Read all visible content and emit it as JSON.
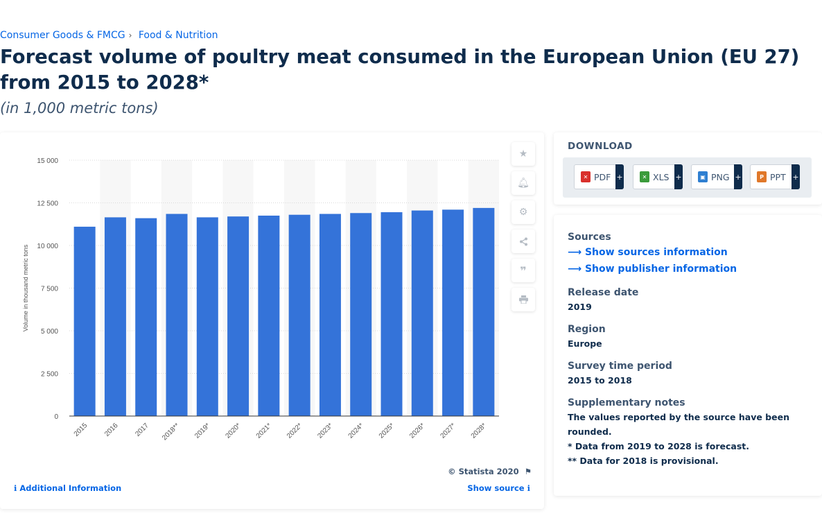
{
  "breadcrumb": {
    "item1": "Consumer Goods & FMCG",
    "sep": "›",
    "item2": "Food & Nutrition"
  },
  "title": "Forecast volume of poultry meat consumed in the European Union (EU 27) from 2015 to 2028*",
  "subtitle": "(in 1,000 metric tons)",
  "chart_data": {
    "type": "bar",
    "categories": [
      "2015",
      "2016",
      "2017",
      "2018**",
      "2019*",
      "2020*",
      "2021*",
      "2022*",
      "2023*",
      "2024*",
      "2025*",
      "2026*",
      "2027*",
      "2028*"
    ],
    "values": [
      11100,
      11650,
      11600,
      11850,
      11650,
      11700,
      11750,
      11800,
      11850,
      11900,
      11950,
      12050,
      12100,
      12200
    ],
    "ylabel": "Volume in thousand metric tons",
    "ylim": [
      0,
      15000
    ],
    "yticks": [
      "0",
      "2 500",
      "5 000",
      "7 500",
      "10 000",
      "12 500",
      "15 000"
    ],
    "bar_color": "#3473d9",
    "grid": true
  },
  "chart_footer": {
    "copyright": "© Statista 2020",
    "additional_info": "Additional Information",
    "show_source": "Show source"
  },
  "tools": [
    "star-icon",
    "bell-icon",
    "gear-icon",
    "share-icon",
    "quote-icon",
    "print-icon"
  ],
  "download": {
    "title": "DOWNLOAD",
    "buttons": [
      {
        "label": "PDF",
        "color": "#d9302c"
      },
      {
        "label": "XLS",
        "color": "#3b9b3b"
      },
      {
        "label": "PNG",
        "color": "#2f7fd1"
      },
      {
        "label": "PPT",
        "color": "#e0782a"
      }
    ],
    "plus": "+"
  },
  "info": {
    "sources_head": "Sources",
    "show_sources": "Show sources information",
    "show_publisher": "Show publisher information",
    "release_head": "Release date",
    "release_val": "2019",
    "region_head": "Region",
    "region_val": "Europe",
    "survey_head": "Survey time period",
    "survey_val": "2015 to 2018",
    "notes_head": "Supplementary notes",
    "notes_1": "The values reported by the source have been rounded.",
    "notes_2": "* Data from 2019 to 2028 is forecast.",
    "notes_3": "** Data for 2018 is provisional."
  }
}
